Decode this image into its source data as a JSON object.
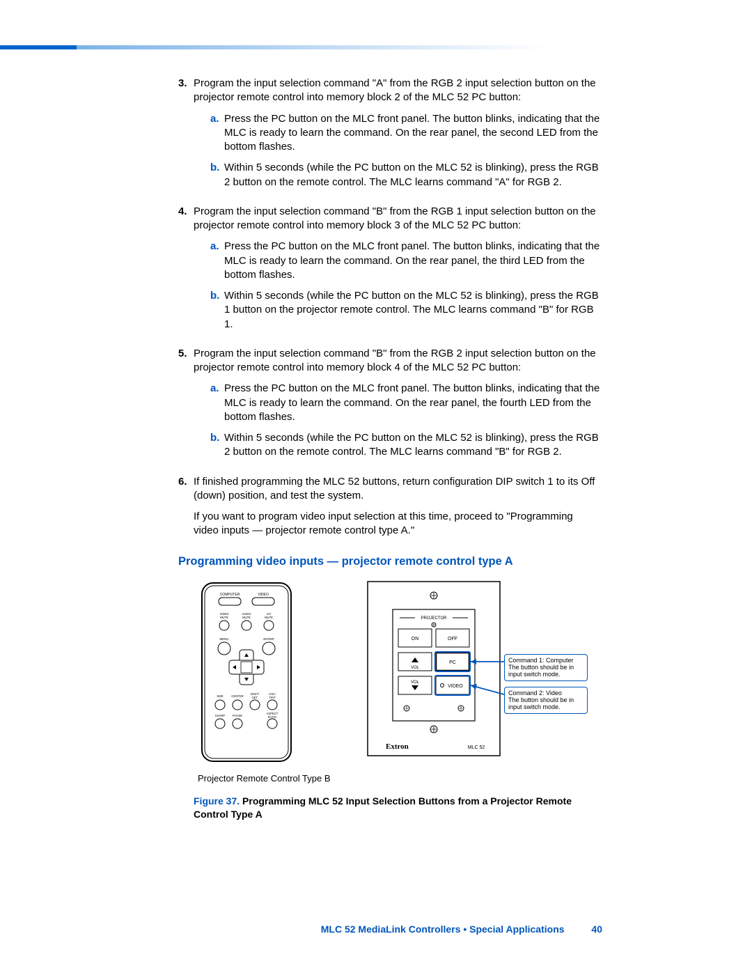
{
  "steps": [
    {
      "num": "3.",
      "text": "Program the input selection command \"A\" from the RGB 2 input selection button on the projector remote control into memory block 2 of the MLC 52 PC button:",
      "subs": [
        {
          "letter": "a.",
          "text": "Press the PC button on the MLC front panel. The button blinks, indicating that the MLC is ready to learn the command. On the rear panel, the second LED from the bottom flashes."
        },
        {
          "letter": "b.",
          "text": "Within 5 seconds (while the PC button on the MLC 52 is blinking), press the RGB 2 button on the remote control. The MLC learns command \"A\" for RGB 2."
        }
      ]
    },
    {
      "num": "4.",
      "text": "Program the input selection command \"B\" from the RGB 1 input selection button on the projector remote control into memory block 3 of the MLC 52 PC button:",
      "subs": [
        {
          "letter": "a.",
          "text": "Press the PC button on the MLC front panel. The button blinks, indicating that the MLC is ready to learn the command. On the rear panel, the third LED from the bottom flashes."
        },
        {
          "letter": "b.",
          "text": "Within 5 seconds (while the PC button on the MLC 52 is blinking), press the RGB 1 button on the projector remote control. The MLC learns command \"B\" for RGB 1."
        }
      ]
    },
    {
      "num": "5.",
      "text": "Program the input selection command \"B\" from the RGB 2 input selection button on the projector remote control into memory block 4 of the MLC 52 PC button:",
      "subs": [
        {
          "letter": "a.",
          "text": "Press the PC button on the MLC front panel. The button blinks, indicating that the MLC is ready to learn the command. On the rear panel, the fourth LED from the bottom flashes."
        },
        {
          "letter": "b.",
          "text": "Within 5 seconds (while the PC button on the MLC 52 is blinking), press the RGB 2 button on the remote control. The MLC learns command \"B\" for RGB 2."
        }
      ]
    },
    {
      "num": "6.",
      "text": "If finished programming the MLC 52 buttons, return configuration DIP switch 1 to its Off (down) position, and test the system.",
      "extra": "If you want to program video input selection at this time, proceed to \"Programming video inputs — projector remote control type A.\"",
      "subs": []
    }
  ],
  "section_heading": "Programming video inputs — projector remote control type A",
  "remote": {
    "top_labels": [
      "COMPUTER",
      "VIDEO"
    ],
    "mute_labels": [
      "VIDEO\nMUTE",
      "AUDIO\nMUTE",
      "A/V\nMUTE"
    ],
    "menu_labels": [
      "MENU",
      "ENTER"
    ],
    "bottom_labels": [
      "SIZE",
      "CENTER",
      "DIGIT/\nSET",
      "COL/\nTINT"
    ],
    "bottom_labels2": [
      "SHARP",
      "PHASE",
      "",
      "ASPECT\nRATIO"
    ]
  },
  "panel": {
    "projector_label": "PROJECTOR",
    "on": "ON",
    "off": "OFF",
    "vol_up": "▲",
    "vol_label1": "VOL",
    "pc": "PC",
    "vol_label2": "VOL",
    "vol_down": "▼",
    "video": "VIDEO",
    "brand": "Extron",
    "model": "MLC 52"
  },
  "callouts": [
    {
      "title": "Command 1: Computer",
      "body": "The button should be in input switch mode."
    },
    {
      "title": "Command 2: Video",
      "body": "The button should be in input switch mode."
    }
  ],
  "remote_caption": "Projector Remote Control Type B",
  "figure_label": "Figure 37.",
  "figure_title": "Programming MLC 52 Input Selection Buttons from a Projector Remote Control Type A",
  "footer": "MLC 52 MediaLink Controllers • Special Applications",
  "page_num": "40",
  "colors": {
    "accent": "#0055bb",
    "bar": "#0066cc",
    "text": "#000000"
  }
}
